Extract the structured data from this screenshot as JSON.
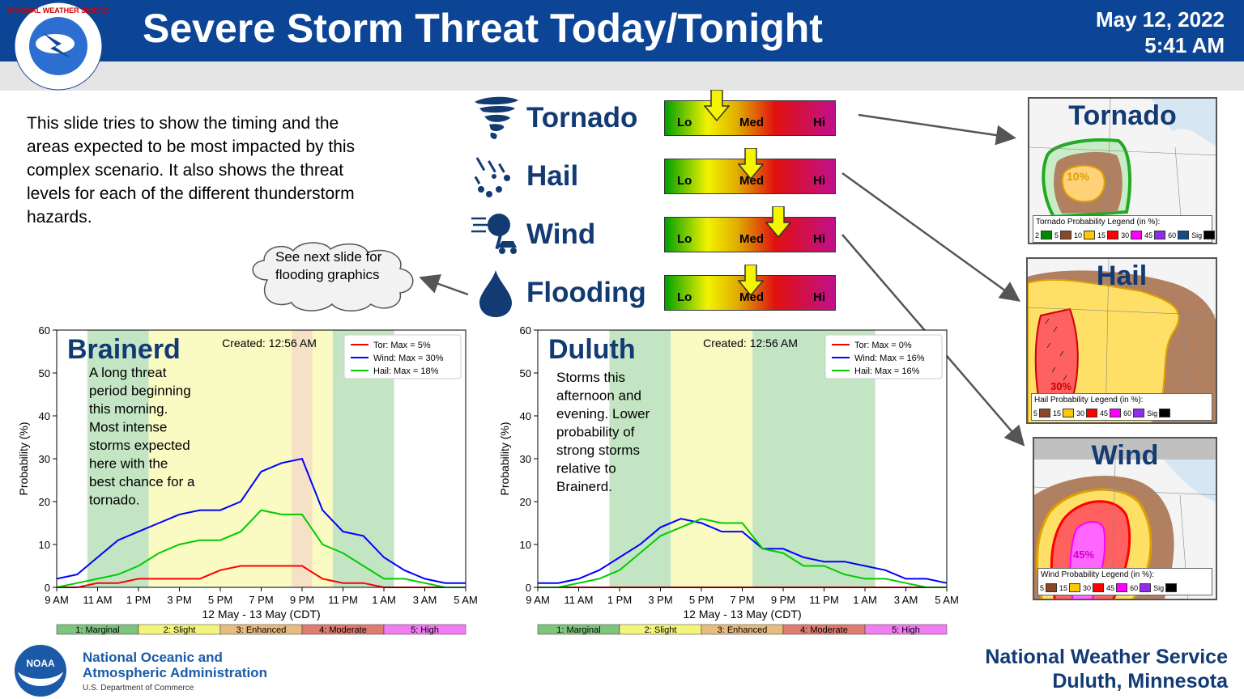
{
  "header": {
    "title": "Severe Storm Threat Today/Tonight",
    "date": "May 12, 2022",
    "time": "5:41 AM",
    "logo_text": "NATIONAL WEATHER SERVICE"
  },
  "description": "This slide tries to show the timing and the areas expected to be most impacted by this complex scenario. It also shows the threat levels for each of the different thunderstorm hazards.",
  "callout": "See next slide for flooding graphics",
  "gauge_labels": {
    "lo": "Lo",
    "med": "Med",
    "hi": "Hi"
  },
  "hazards": [
    {
      "name": "Tornado",
      "icon": "tornado-icon",
      "level": 0.3
    },
    {
      "name": "Hail",
      "icon": "hail-icon",
      "level": 0.5
    },
    {
      "name": "Wind",
      "icon": "wind-damage-icon",
      "level": 0.66
    },
    {
      "name": "Flooding",
      "icon": "water-drop-icon",
      "level": 0.5
    }
  ],
  "maps": [
    {
      "title": "Tornado",
      "legend_title": "Tornado Probability Legend (in %):",
      "legend": [
        {
          "label": "2",
          "color": "#008b00"
        },
        {
          "label": "5",
          "color": "#8b4726"
        },
        {
          "label": "10",
          "color": "#ffc800"
        },
        {
          "label": "15",
          "color": "#ff0000"
        },
        {
          "label": "30",
          "color": "#ff00ff"
        },
        {
          "label": "45",
          "color": "#912cee"
        },
        {
          "label": "60",
          "color": "#104e8b"
        },
        {
          "label": "Sig",
          "color": "#000000"
        }
      ],
      "label": "10%"
    },
    {
      "title": "Hail",
      "legend_title": "Hail Probability Legend (in %):",
      "legend": [
        {
          "label": "5",
          "color": "#8b4726"
        },
        {
          "label": "15",
          "color": "#ffc800"
        },
        {
          "label": "30",
          "color": "#ff0000"
        },
        {
          "label": "45",
          "color": "#ff00ff"
        },
        {
          "label": "60",
          "color": "#912cee"
        },
        {
          "label": "Sig",
          "color": "#000000"
        }
      ],
      "label": "30%"
    },
    {
      "title": "Wind",
      "legend_title": "Wind Probability Legend (in %):",
      "legend": [
        {
          "label": "5",
          "color": "#8b4726"
        },
        {
          "label": "15",
          "color": "#ffc800"
        },
        {
          "label": "30",
          "color": "#ff0000"
        },
        {
          "label": "45",
          "color": "#ff00ff"
        },
        {
          "label": "60",
          "color": "#912cee"
        },
        {
          "label": "Sig",
          "color": "#000000"
        }
      ],
      "label": "45%"
    }
  ],
  "risk_categories": [
    {
      "label": "1: Marginal",
      "color": "#7dc57d"
    },
    {
      "label": "2: Slight",
      "color": "#f4f47a"
    },
    {
      "label": "3: Enhanced",
      "color": "#e8bc80"
    },
    {
      "label": "4: Moderate",
      "color": "#e07b70"
    },
    {
      "label": "5: High",
      "color": "#f27cf2"
    }
  ],
  "chart_data": [
    {
      "type": "line",
      "title": "Brainerd",
      "created": "Created: 12:56 AM",
      "annotation": [
        "A long threat",
        "period beginning",
        "this morning.",
        "Most intense",
        "storms expected",
        "here with the",
        "best chance for a",
        "tornado."
      ],
      "xlabel": "12 May - 13 May (CDT)",
      "ylabel": "Probability (%)",
      "xticks": [
        "9 AM",
        "11 AM",
        "1 PM",
        "3 PM",
        "5 PM",
        "7 PM",
        "9 PM",
        "11 PM",
        "1 AM",
        "3 AM",
        "5 AM"
      ],
      "yticks": [
        0,
        10,
        20,
        30,
        40,
        50,
        60
      ],
      "ylim": [
        0,
        60
      ],
      "xlim": [
        0,
        20
      ],
      "risk_bands": [
        {
          "from": 1.5,
          "to": 4.5,
          "category": 1
        },
        {
          "from": 4.5,
          "to": 11.5,
          "category": 2
        },
        {
          "from": 11.5,
          "to": 12.5,
          "category": 3
        },
        {
          "from": 12.5,
          "to": 13.5,
          "category": 2
        },
        {
          "from": 13.5,
          "to": 16.5,
          "category": 1
        }
      ],
      "series": [
        {
          "name": "Tor: Max = 5%",
          "color": "#ff0000",
          "x": [
            0,
            1,
            2,
            3,
            4,
            5,
            6,
            7,
            8,
            9,
            10,
            11,
            12,
            13,
            14,
            15,
            16,
            17,
            18,
            19,
            20
          ],
          "y": [
            0,
            0,
            1,
            1,
            2,
            2,
            2,
            2,
            4,
            5,
            5,
            5,
            5,
            2,
            1,
            1,
            0,
            0,
            0,
            0,
            0
          ]
        },
        {
          "name": "Wind: Max = 30%",
          "color": "#0000ff",
          "x": [
            0,
            1,
            2,
            3,
            4,
            5,
            6,
            7,
            8,
            9,
            10,
            11,
            12,
            13,
            14,
            15,
            16,
            17,
            18,
            19,
            20
          ],
          "y": [
            2,
            3,
            7,
            11,
            13,
            15,
            17,
            18,
            18,
            20,
            27,
            29,
            30,
            18,
            13,
            12,
            7,
            4,
            2,
            1,
            1
          ]
        },
        {
          "name": "Hail: Max = 18%",
          "color": "#00cc00",
          "x": [
            0,
            1,
            2,
            3,
            4,
            5,
            6,
            7,
            8,
            9,
            10,
            11,
            12,
            13,
            14,
            15,
            16,
            17,
            18,
            19,
            20
          ],
          "y": [
            0,
            1,
            2,
            3,
            5,
            8,
            10,
            11,
            11,
            13,
            18,
            17,
            17,
            10,
            8,
            5,
            2,
            2,
            1,
            0,
            0
          ]
        }
      ]
    },
    {
      "type": "line",
      "title": "Duluth",
      "created": "Created: 12:56 AM",
      "annotation": [
        "Storms this",
        "afternoon and",
        "evening. Lower",
        "probability of",
        "strong storms",
        "relative to",
        "Brainerd."
      ],
      "xlabel": "12 May - 13 May (CDT)",
      "ylabel": "Probability (%)",
      "xticks": [
        "9 AM",
        "11 AM",
        "1 PM",
        "3 PM",
        "5 PM",
        "7 PM",
        "9 PM",
        "11 PM",
        "1 AM",
        "3 AM",
        "5 AM"
      ],
      "yticks": [
        0,
        10,
        20,
        30,
        40,
        50,
        60
      ],
      "ylim": [
        0,
        60
      ],
      "xlim": [
        0,
        20
      ],
      "risk_bands": [
        {
          "from": 3.5,
          "to": 6.5,
          "category": 1
        },
        {
          "from": 6.5,
          "to": 10.5,
          "category": 2
        },
        {
          "from": 10.5,
          "to": 16.5,
          "category": 1
        }
      ],
      "series": [
        {
          "name": "Tor: Max = 0%",
          "color": "#ff0000",
          "x": [
            0,
            1,
            2,
            3,
            4,
            5,
            6,
            7,
            8,
            9,
            10,
            11,
            12,
            13,
            14,
            15,
            16,
            17,
            18,
            19,
            20
          ],
          "y": [
            0,
            0,
            0,
            0,
            0,
            0,
            0,
            0,
            0,
            0,
            0,
            0,
            0,
            0,
            0,
            0,
            0,
            0,
            0,
            0,
            0
          ]
        },
        {
          "name": "Wind: Max = 16%",
          "color": "#0000ff",
          "x": [
            0,
            1,
            2,
            3,
            4,
            5,
            6,
            7,
            8,
            9,
            10,
            11,
            12,
            13,
            14,
            15,
            16,
            17,
            18,
            19,
            20
          ],
          "y": [
            1,
            1,
            2,
            4,
            7,
            10,
            14,
            16,
            15,
            13,
            13,
            9,
            9,
            7,
            6,
            6,
            5,
            4,
            2,
            2,
            1
          ]
        },
        {
          "name": "Hail: Max = 16%",
          "color": "#00cc00",
          "x": [
            0,
            1,
            2,
            3,
            4,
            5,
            6,
            7,
            8,
            9,
            10,
            11,
            12,
            13,
            14,
            15,
            16,
            17,
            18,
            19,
            20
          ],
          "y": [
            0,
            0,
            1,
            2,
            4,
            8,
            12,
            14,
            16,
            15,
            15,
            9,
            8,
            5,
            5,
            3,
            2,
            2,
            1,
            0,
            0
          ]
        }
      ]
    }
  ],
  "footer": {
    "noaa_line1": "National Oceanic and",
    "noaa_line2": "Atmospheric Administration",
    "noaa_line3": "U.S. Department of Commerce",
    "noaa_logo_text": "NOAA",
    "office_line1": "National Weather Service",
    "office_line2": "Duluth, Minnesota"
  }
}
